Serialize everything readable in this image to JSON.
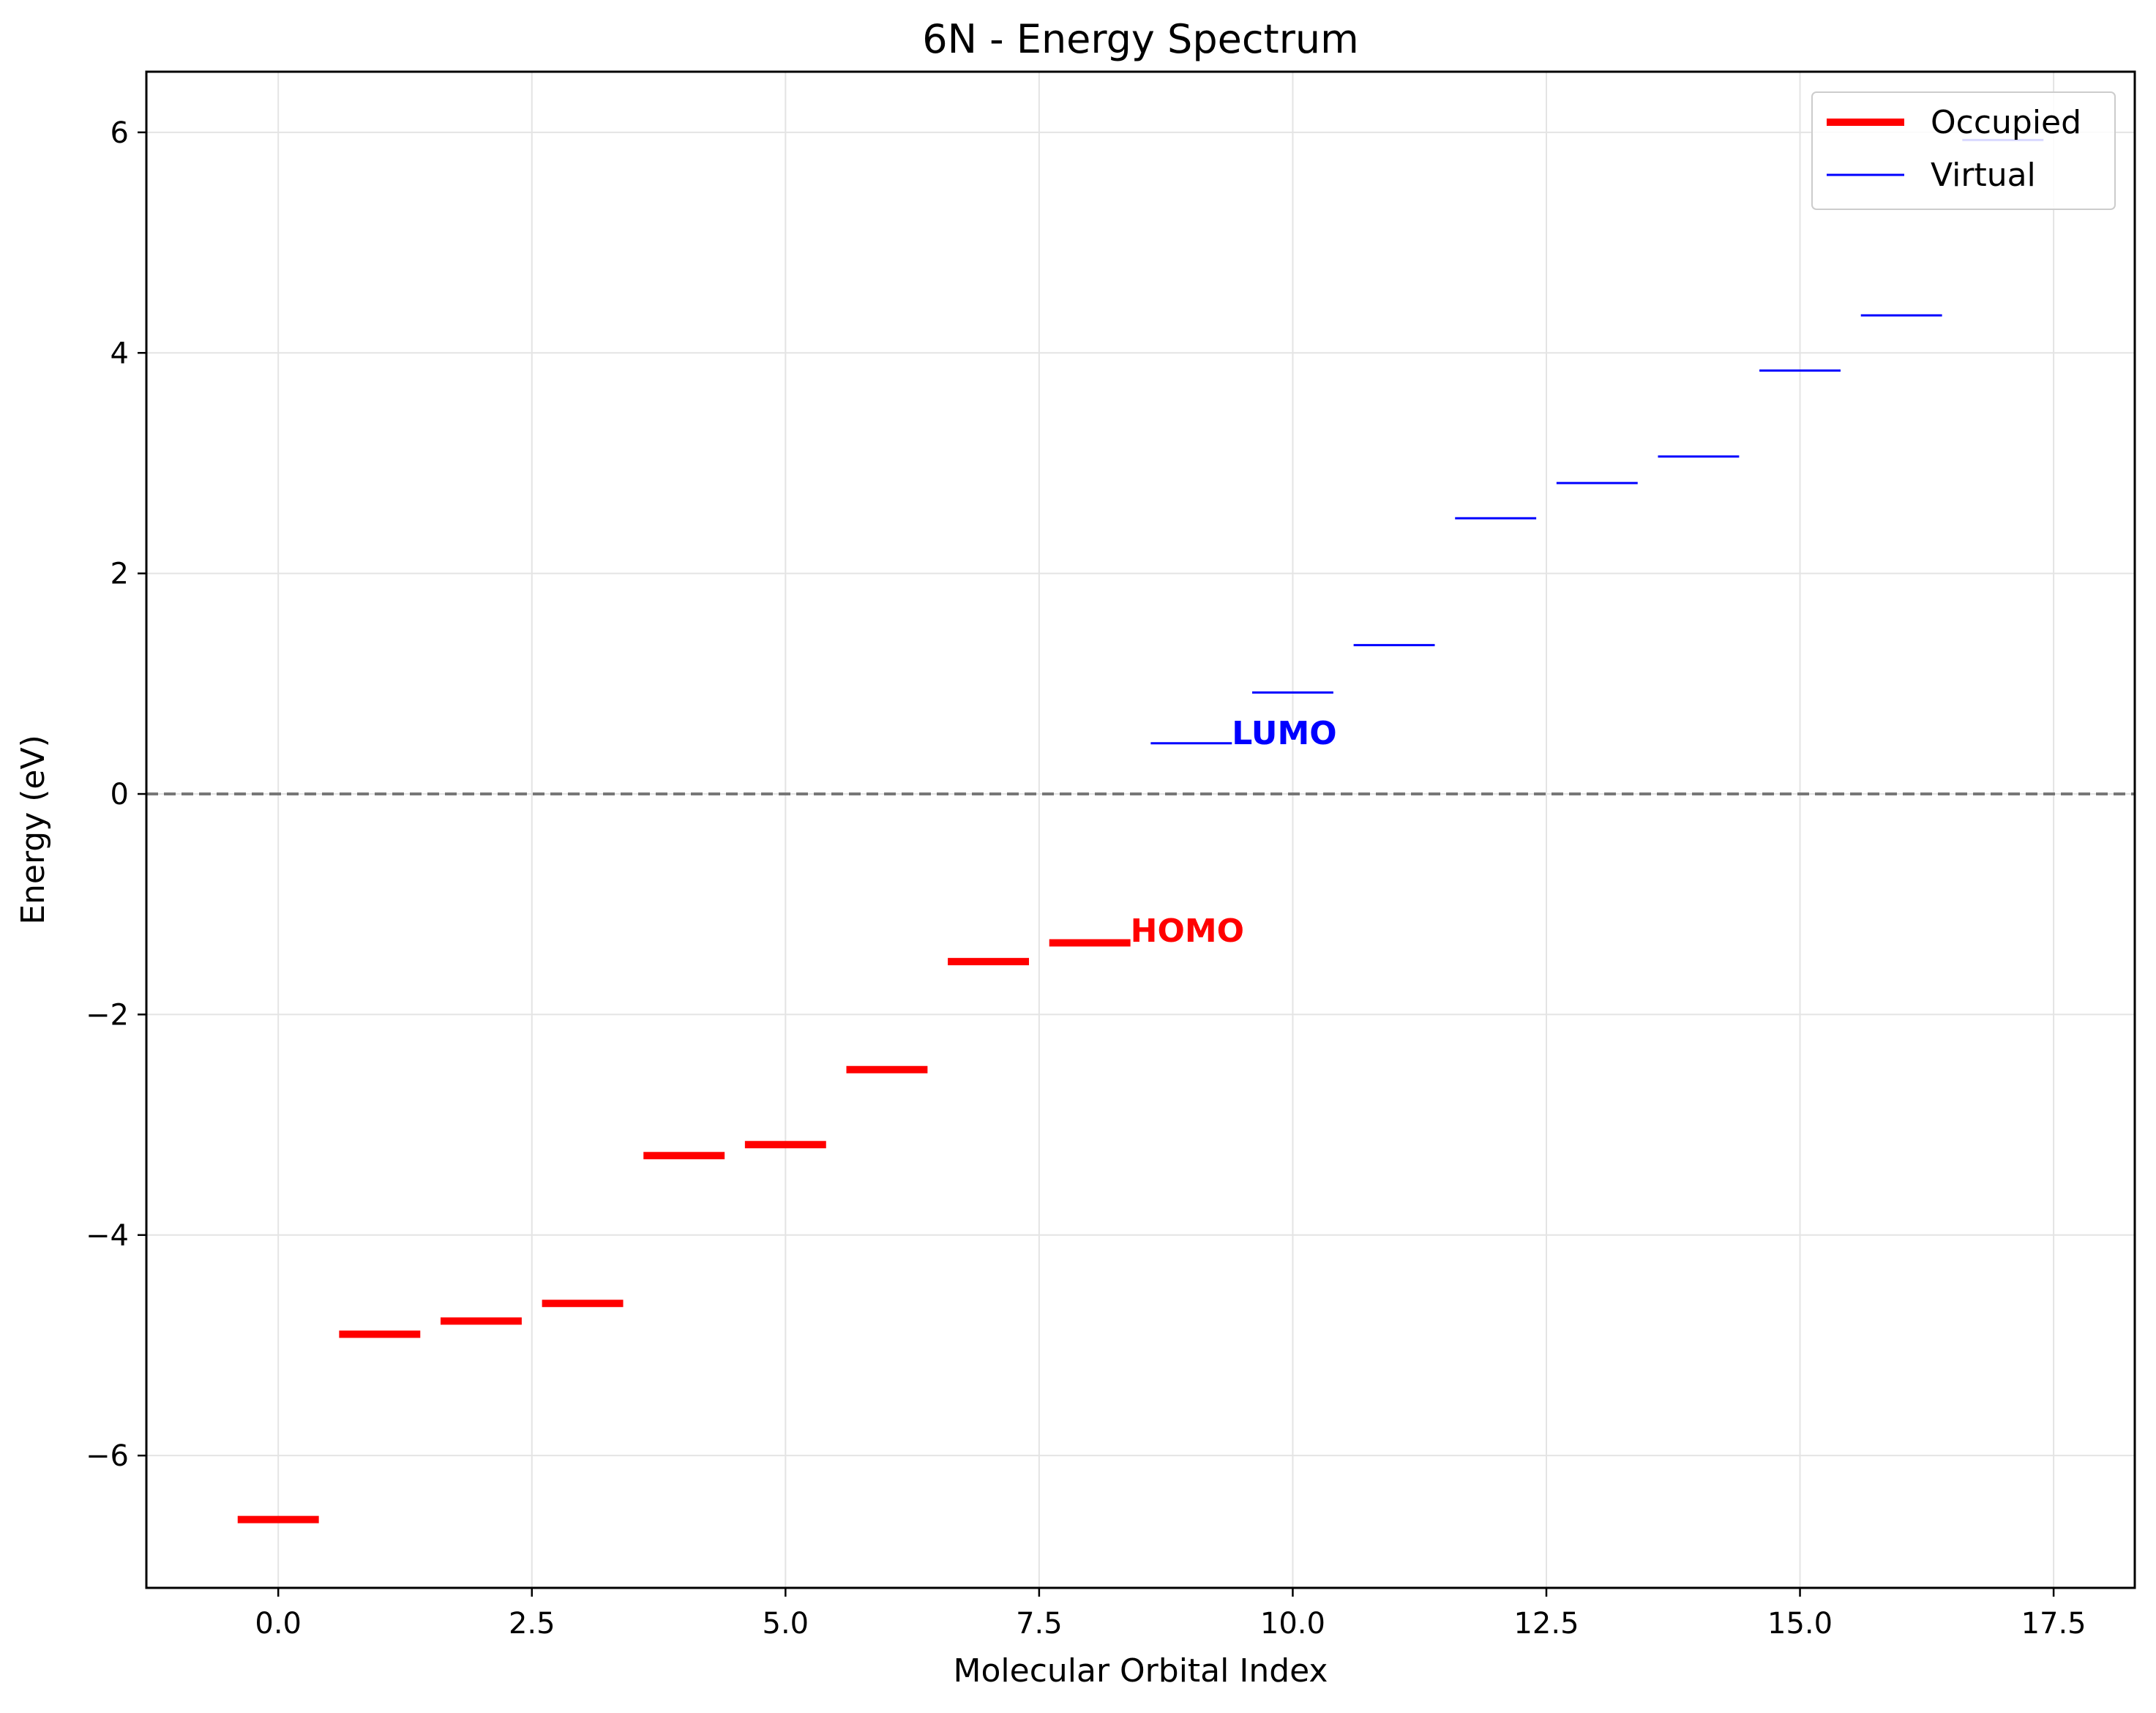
{
  "chart_data": {
    "type": "line",
    "title": "6N - Energy Spectrum",
    "xlabel": "Molecular Orbital Index",
    "ylabel": "Energy (eV)",
    "xlim": [
      -1.3,
      18.3
    ],
    "ylim": [
      -7.2,
      6.55
    ],
    "xticks": [
      0.0,
      2.5,
      5.0,
      7.5,
      10.0,
      12.5,
      15.0,
      17.5
    ],
    "xtick_labels": [
      "0.0",
      "2.5",
      "5.0",
      "7.5",
      "10.0",
      "12.5",
      "15.0",
      "17.5"
    ],
    "yticks": [
      -6,
      -4,
      -2,
      0,
      2,
      4,
      6
    ],
    "ytick_labels": [
      "−6",
      "−4",
      "−2",
      "0",
      "2",
      "4",
      "6"
    ],
    "grid": true,
    "reference_line": {
      "y": 0,
      "style": "dashed",
      "color": "#777777"
    },
    "legend": {
      "position": "top-right"
    },
    "series": [
      {
        "name": "Occupied",
        "color": "#ff0000",
        "x": [
          0,
          1,
          2,
          3,
          4,
          5,
          6,
          7,
          8
        ],
        "values": [
          -6.58,
          -4.9,
          -4.78,
          -4.62,
          -3.28,
          -3.18,
          -2.5,
          -1.52,
          -1.35
        ]
      },
      {
        "name": "Virtual",
        "color": "#0000ff",
        "x": [
          9,
          10,
          11,
          12,
          13,
          14,
          15,
          16,
          17
        ],
        "values": [
          0.46,
          0.92,
          1.35,
          2.5,
          2.82,
          3.06,
          3.84,
          4.34,
          5.93
        ]
      }
    ],
    "annotations": [
      {
        "text": "HOMO",
        "x": 8.4,
        "y": -1.24,
        "color": "#ff0000"
      },
      {
        "text": "LUMO",
        "x": 9.4,
        "y": 0.55,
        "color": "#0000ff"
      }
    ]
  }
}
